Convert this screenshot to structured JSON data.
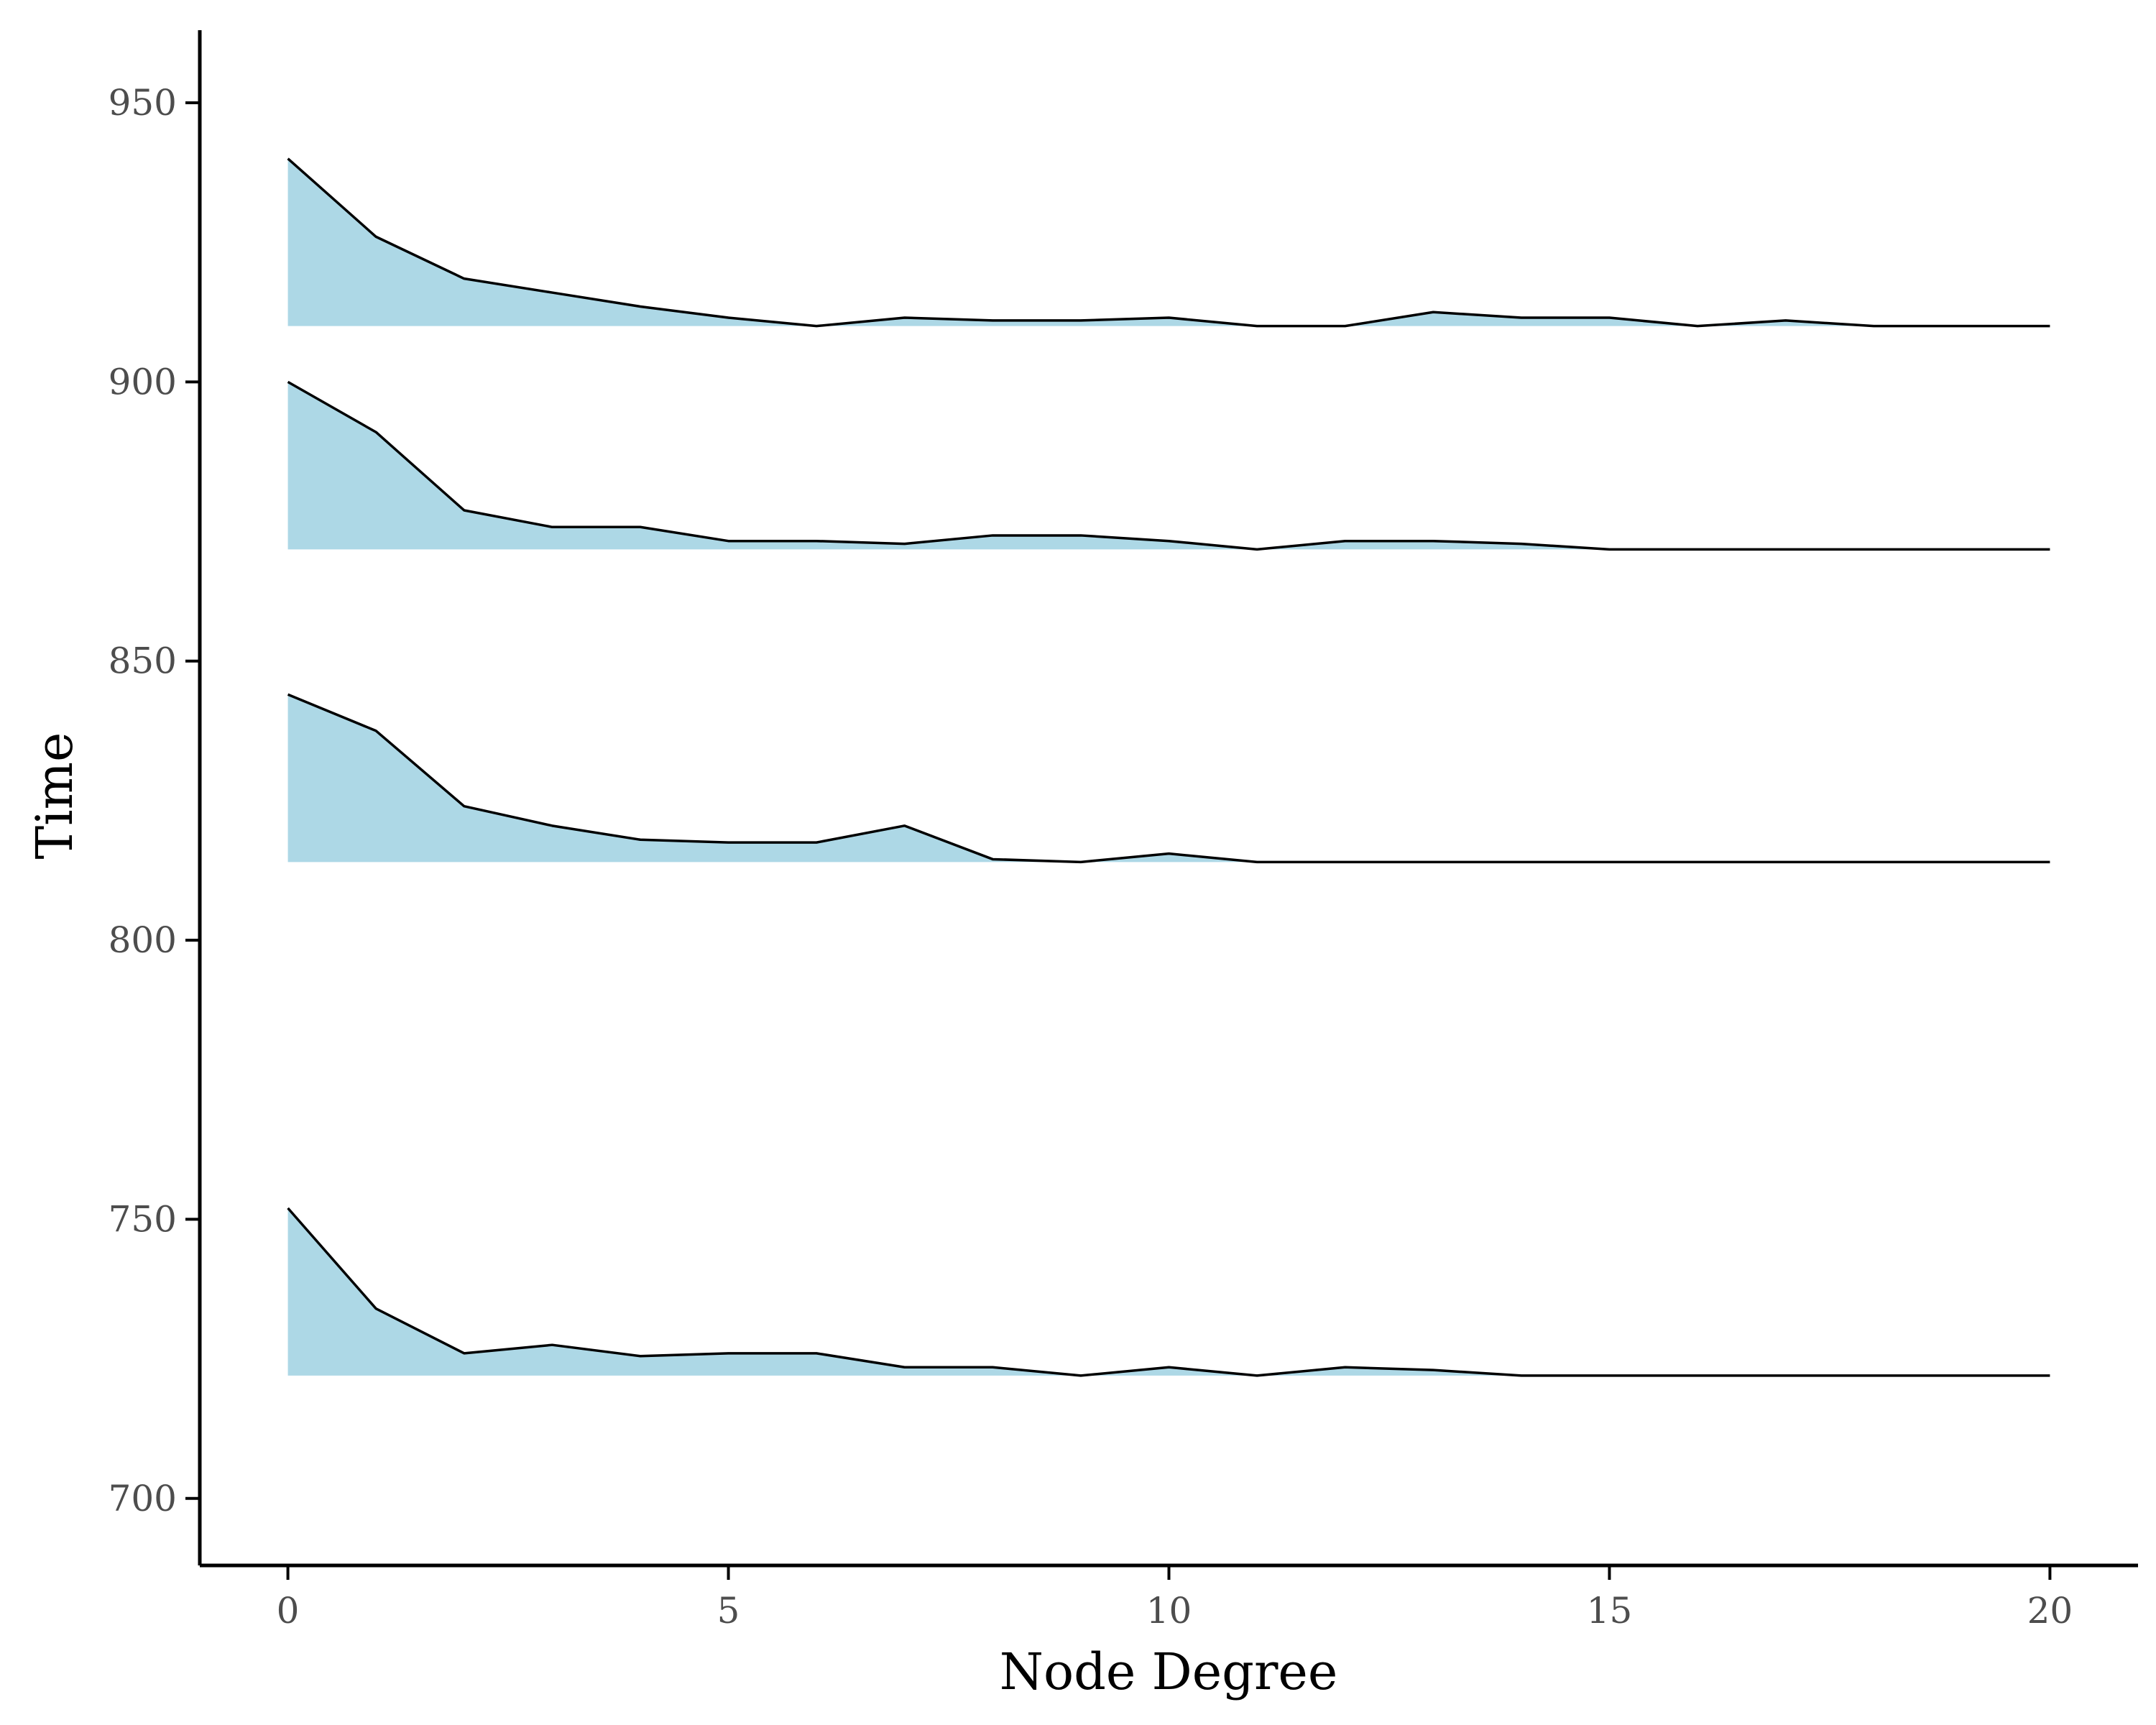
{
  "chart_data": {
    "type": "area",
    "title": "",
    "xlabel": "Node Degree",
    "ylabel": "Time",
    "xlim": [
      -1,
      21
    ],
    "ylim": [
      688,
      963
    ],
    "xticks": [
      0,
      5,
      10,
      15,
      20
    ],
    "yticks": [
      700,
      750,
      800,
      850,
      900,
      950
    ],
    "grid": false,
    "legend": "none",
    "fill_color": "#add8e6",
    "line_color": "#000000",
    "x": [
      0,
      1,
      2,
      3,
      4,
      5,
      6,
      7,
      8,
      9,
      10,
      11,
      12,
      13,
      14,
      15,
      16,
      17,
      18,
      19,
      20
    ],
    "series": [
      {
        "baseline": 910,
        "values": [
          940,
          926,
          918.5,
          916,
          913.5,
          911.5,
          910,
          911.5,
          911,
          911,
          911.5,
          910,
          910,
          912.5,
          911.5,
          911.5,
          910,
          911,
          910,
          910,
          910
        ]
      },
      {
        "baseline": 870,
        "values": [
          900,
          891,
          877,
          874,
          874,
          871.5,
          871.5,
          871,
          872.5,
          872.5,
          871.5,
          870,
          871.5,
          871.5,
          871,
          870,
          870,
          870,
          870,
          870,
          870
        ]
      },
      {
        "baseline": 814,
        "values": [
          844,
          837.5,
          824,
          820.5,
          818,
          817.5,
          817.5,
          820.5,
          814.5,
          814,
          815.5,
          814,
          814,
          814,
          814,
          814,
          814,
          814,
          814,
          814,
          814
        ]
      },
      {
        "baseline": 722,
        "values": [
          752,
          734,
          726,
          727.5,
          725.5,
          726,
          726,
          723.5,
          723.5,
          722,
          723.5,
          722,
          723.5,
          723,
          722,
          722,
          722,
          722,
          722,
          722,
          722
        ]
      }
    ]
  }
}
